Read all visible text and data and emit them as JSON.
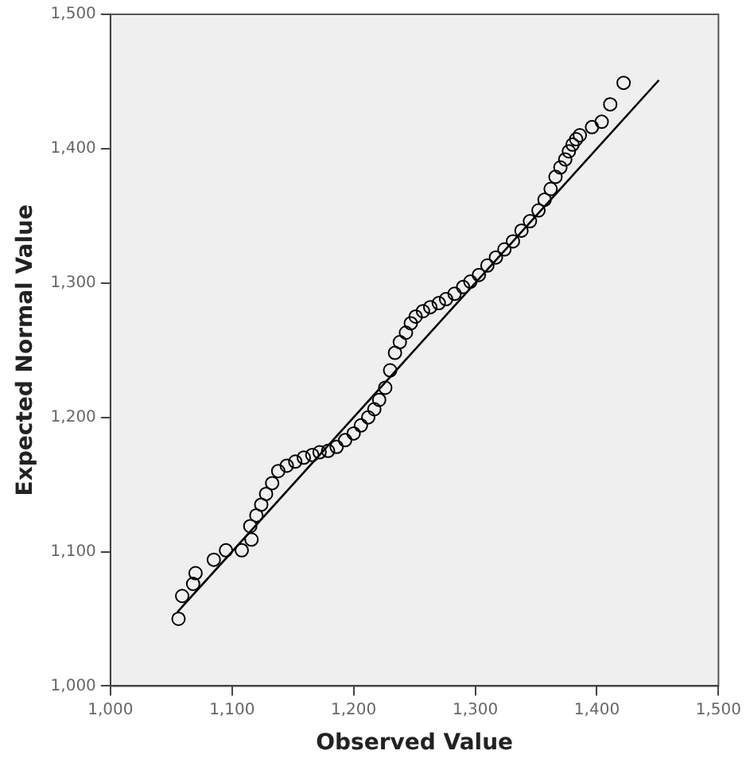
{
  "chart_data": {
    "type": "scatter",
    "xlabel": "Observed Value",
    "ylabel": "Expected Normal Value",
    "xlim": [
      1000,
      1500
    ],
    "ylim": [
      1000,
      1500
    ],
    "xticks": [
      {
        "value": 1000,
        "label": "1,000"
      },
      {
        "value": 1100,
        "label": "1,100"
      },
      {
        "value": 1200,
        "label": "1,200"
      },
      {
        "value": 1300,
        "label": "1,300"
      },
      {
        "value": 1400,
        "label": "1,400"
      },
      {
        "value": 1500,
        "label": "1,500"
      }
    ],
    "yticks": [
      {
        "value": 1000,
        "label": "1,000"
      },
      {
        "value": 1100,
        "label": "1,100"
      },
      {
        "value": 1200,
        "label": "1,200"
      },
      {
        "value": 1300,
        "label": "1,300"
      },
      {
        "value": 1400,
        "label": "1,400"
      },
      {
        "value": 1500,
        "label": "1,500"
      }
    ],
    "grid": false,
    "legend": false,
    "series": [
      {
        "color": "#000000",
        "marker": "circle",
        "x": [
          1056,
          1059,
          1068,
          1070,
          1085,
          1095,
          1108,
          1115,
          1116,
          1120,
          1124,
          1128,
          1133,
          1138,
          1145,
          1152,
          1159,
          1166,
          1172,
          1179,
          1186,
          1193,
          1200,
          1206,
          1212,
          1217,
          1221,
          1226,
          1230,
          1234,
          1238,
          1243,
          1247,
          1251,
          1257,
          1263,
          1270,
          1276,
          1283,
          1290,
          1296,
          1303,
          1310,
          1317,
          1324,
          1331,
          1338,
          1345,
          1352,
          1357,
          1362,
          1366,
          1370,
          1374,
          1377,
          1380,
          1383,
          1386,
          1396,
          1404,
          1411,
          1422
        ],
        "values": [
          1050,
          1067,
          1076,
          1084,
          1094,
          1101,
          1101,
          1119,
          1109,
          1127,
          1135,
          1143,
          1151,
          1160,
          1164,
          1167,
          1170,
          1172,
          1174,
          1175,
          1178,
          1183,
          1188,
          1194,
          1200,
          1206,
          1213,
          1222,
          1235,
          1248,
          1256,
          1263,
          1270,
          1275,
          1279,
          1282,
          1285,
          1288,
          1292,
          1297,
          1301,
          1306,
          1313,
          1319,
          1325,
          1331,
          1339,
          1346,
          1354,
          1362,
          1370,
          1379,
          1386,
          1392,
          1398,
          1403,
          1407,
          1410,
          1416,
          1420,
          1433,
          1449
        ]
      },
      {
        "type": "line",
        "color": "#000000",
        "marker": "none",
        "line_style": "solid",
        "x": [
          1055,
          1451
        ],
        "values": [
          1055,
          1451
        ]
      }
    ]
  }
}
